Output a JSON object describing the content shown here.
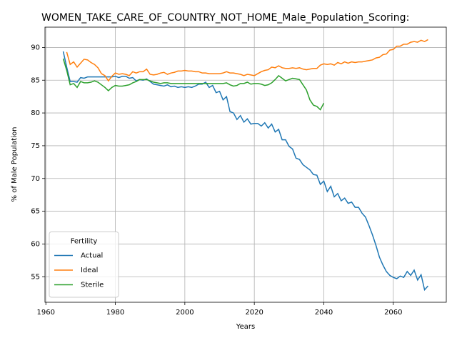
{
  "chart_data": {
    "type": "line",
    "title": "WOMEN_TAKE_CARE_OF_COUNTRY_NOT_HOME_Male_Population_Scoring:",
    "xlabel": "Years",
    "ylabel": "% of Male Population",
    "x": [
      1965,
      1966,
      1967,
      1968,
      1969,
      1970,
      1971,
      1972,
      1973,
      1974,
      1975,
      1976,
      1977,
      1978,
      1979,
      1980,
      1981,
      1982,
      1983,
      1984,
      1985,
      1986,
      1987,
      1988,
      1989,
      1990,
      1991,
      1992,
      1993,
      1994,
      1995,
      1996,
      1997,
      1998,
      1999,
      2000,
      2001,
      2002,
      2003,
      2004,
      2005,
      2006,
      2007,
      2008,
      2009,
      2010,
      2011,
      2012,
      2013,
      2014,
      2015,
      2016,
      2017,
      2018,
      2019,
      2020,
      2021,
      2022,
      2023,
      2024,
      2025,
      2026,
      2027,
      2028,
      2029,
      2030,
      2031,
      2032,
      2033,
      2034,
      2035,
      2036,
      2037,
      2038,
      2039,
      2040,
      2041,
      2042,
      2043,
      2044,
      2045,
      2046,
      2047,
      2048,
      2049,
      2050,
      2051,
      2052,
      2053,
      2054,
      2055,
      2056,
      2057,
      2058,
      2059,
      2060,
      2061,
      2062,
      2063,
      2064,
      2065,
      2066,
      2067,
      2068,
      2069,
      2070
    ],
    "series": [
      {
        "name": "Actual",
        "color": "#1f77b4",
        "values": [
          89.4,
          87.0,
          84.8,
          84.8,
          84.7,
          85.4,
          85.3,
          85.5,
          85.5,
          85.5,
          85.5,
          85.5,
          85.5,
          85.5,
          85.5,
          85.6,
          85.4,
          85.6,
          85.6,
          85.3,
          85.4,
          84.9,
          85.1,
          85.0,
          85.2,
          84.8,
          84.4,
          84.3,
          84.2,
          84.1,
          84.3,
          84.0,
          84.1,
          83.9,
          84.0,
          83.9,
          84.0,
          83.9,
          84.1,
          84.4,
          84.4,
          84.7,
          83.9,
          84.2,
          83.1,
          83.3,
          82.0,
          82.5,
          80.2,
          80.0,
          79.0,
          79.6,
          78.6,
          79.1,
          78.3,
          78.4,
          78.4,
          78.0,
          78.5,
          77.7,
          78.3,
          77.1,
          77.5,
          75.9,
          75.9,
          74.9,
          74.5,
          73.1,
          72.9,
          72.1,
          71.7,
          71.3,
          70.6,
          70.5,
          69.1,
          69.6,
          68.0,
          68.8,
          67.2,
          67.7,
          66.6,
          67.0,
          66.2,
          66.4,
          65.6,
          65.6,
          64.7,
          64.1,
          62.8,
          61.4,
          59.8,
          58.0,
          56.8,
          55.8,
          55.2,
          54.9,
          54.7,
          55.1,
          54.9,
          55.8,
          55.2,
          56.0,
          54.5,
          55.3,
          53.0,
          53.6
        ]
      },
      {
        "name": "Ideal",
        "color": "#ff7f0e",
        "values": [
          null,
          89.3,
          87.4,
          87.8,
          87.0,
          87.6,
          88.2,
          88.1,
          87.7,
          87.4,
          86.9,
          86.0,
          85.7,
          84.9,
          85.6,
          86.1,
          85.9,
          86.0,
          85.9,
          85.7,
          86.3,
          86.1,
          86.3,
          86.3,
          86.7,
          85.9,
          85.8,
          85.9,
          86.1,
          86.2,
          85.9,
          86.1,
          86.2,
          86.4,
          86.4,
          86.5,
          86.4,
          86.4,
          86.3,
          86.3,
          86.1,
          86.1,
          86.0,
          86.0,
          86.0,
          86.0,
          86.1,
          86.3,
          86.1,
          86.1,
          86.0,
          85.9,
          85.7,
          85.9,
          85.8,
          85.7,
          86.0,
          86.3,
          86.5,
          86.6,
          87.0,
          86.9,
          87.2,
          86.9,
          86.8,
          86.8,
          86.9,
          86.8,
          86.9,
          86.7,
          86.6,
          86.7,
          86.8,
          86.8,
          87.3,
          87.5,
          87.4,
          87.5,
          87.3,
          87.7,
          87.5,
          87.8,
          87.6,
          87.8,
          87.7,
          87.8,
          87.8,
          87.9,
          88.0,
          88.1,
          88.4,
          88.5,
          88.9,
          89.0,
          89.6,
          89.7,
          90.2,
          90.2,
          90.5,
          90.5,
          90.8,
          90.9,
          90.8,
          91.1,
          90.9,
          91.2
        ]
      },
      {
        "name": "Sterile",
        "color": "#2ca02c",
        "values": [
          88.3,
          86.5,
          84.3,
          84.5,
          83.9,
          84.8,
          84.6,
          84.6,
          84.7,
          84.9,
          84.7,
          84.3,
          83.9,
          83.4,
          83.9,
          84.2,
          84.1,
          84.1,
          84.2,
          84.3,
          84.6,
          84.8,
          85.1,
          85.1,
          85.1,
          84.9,
          84.7,
          84.6,
          84.5,
          84.6,
          84.6,
          84.5,
          84.5,
          84.5,
          84.5,
          84.5,
          84.5,
          84.5,
          84.5,
          84.5,
          84.5,
          84.5,
          84.5,
          84.5,
          84.5,
          84.5,
          84.5,
          84.6,
          84.3,
          84.1,
          84.2,
          84.5,
          84.5,
          84.7,
          84.4,
          84.5,
          84.5,
          84.4,
          84.2,
          84.3,
          84.6,
          85.1,
          85.7,
          85.3,
          84.9,
          85.1,
          85.3,
          85.2,
          85.1,
          84.3,
          83.5,
          82.0,
          81.2,
          81.0,
          80.5,
          81.5,
          null,
          null,
          null,
          null,
          null,
          null,
          null,
          null,
          null,
          null,
          null,
          null,
          null,
          null,
          null,
          null,
          null,
          null,
          null,
          null,
          null,
          null,
          null,
          null,
          null,
          null,
          null,
          null,
          null,
          null
        ]
      }
    ],
    "xlim": [
      1959.75,
      2075.25
    ],
    "xticks": [
      1960,
      1980,
      2000,
      2020,
      2040,
      2060
    ],
    "ylim": [
      51.1,
      93.1
    ],
    "yticks": [
      55,
      60,
      65,
      70,
      75,
      80,
      85,
      90
    ],
    "grid": true,
    "legend": {
      "title": "Fertility",
      "loc": "lower left"
    }
  }
}
